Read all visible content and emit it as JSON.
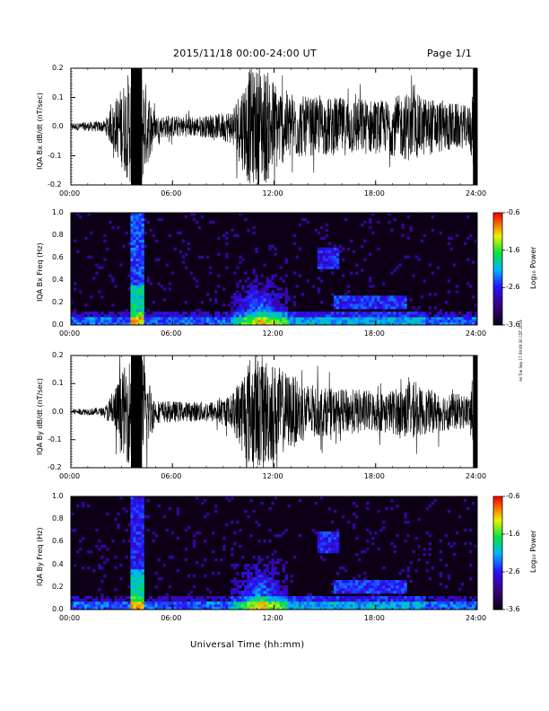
{
  "header": {
    "title": "2015/11/18  00:00-24:00 UT",
    "page": "Page 1/1"
  },
  "x_axis": {
    "label": "Universal Time (hh:mm)",
    "ticks": [
      "00:00",
      "06:00",
      "12:00",
      "18:00",
      "24:00"
    ],
    "range_hours": [
      0,
      24
    ]
  },
  "side_note": "rel Tue Sep 17 09:49:30 CDT 2019",
  "colorbar": {
    "label": "Log₁₀ Power",
    "ticks": [
      "-0.6",
      "-1.6",
      "-2.6",
      "-3.6"
    ],
    "range": [
      -3.6,
      -0.6
    ]
  },
  "chart_data": [
    {
      "type": "line",
      "ylabel": "IQA Bx dB/dt (nT/sec)",
      "ylim": [
        -0.2,
        0.2
      ],
      "yticks": [
        "0.2",
        "0.1",
        "0.0",
        "-0.1",
        "-0.2"
      ],
      "envelope": {
        "hours": [
          0,
          2,
          3.5,
          4.2,
          5,
          7,
          8.5,
          9.5,
          10.5,
          11.5,
          12.5,
          14,
          15.5,
          17,
          18.5,
          20,
          21,
          22,
          23.5,
          24
        ],
        "amplitude": [
          0.012,
          0.02,
          0.2,
          0.2,
          0.04,
          0.035,
          0.04,
          0.06,
          0.2,
          0.2,
          0.13,
          0.1,
          0.1,
          0.1,
          0.09,
          0.12,
          0.1,
          0.09,
          0.07,
          0.2
        ]
      }
    },
    {
      "type": "heatmap",
      "ylabel": "IQA Bx Freq (Hz)",
      "ylim": [
        0,
        1.0
      ],
      "yticks": [
        "1.0",
        "0.8",
        "0.6",
        "0.4",
        "0.2",
        "0.0"
      ],
      "zlabel": "Log₁₀ Power",
      "zlim": [
        -3.6,
        -0.6
      ]
    },
    {
      "type": "line",
      "ylabel": "IQA By dB/dt (nT/sec)",
      "ylim": [
        -0.2,
        0.2
      ],
      "yticks": [
        "0.2",
        "0.1",
        "0.0",
        "-0.1",
        "-0.2"
      ],
      "envelope": {
        "hours": [
          0,
          2,
          3.5,
          4.2,
          5,
          7,
          8.5,
          9.5,
          10.5,
          11.5,
          12.5,
          14,
          15.5,
          17,
          18.5,
          20,
          21,
          22,
          23.5,
          24
        ],
        "amplitude": [
          0.01,
          0.015,
          0.2,
          0.2,
          0.04,
          0.035,
          0.04,
          0.06,
          0.2,
          0.2,
          0.15,
          0.1,
          0.08,
          0.08,
          0.07,
          0.1,
          0.08,
          0.07,
          0.06,
          0.2
        ]
      }
    },
    {
      "type": "heatmap",
      "ylabel": "IQA By Freq (Hz)",
      "ylim": [
        0,
        1.0
      ],
      "yticks": [
        "1.0",
        "0.8",
        "0.6",
        "0.4",
        "0.2",
        "0.0"
      ],
      "zlabel": "Log₁₀ Power",
      "zlim": [
        -3.6,
        -0.6
      ]
    }
  ]
}
